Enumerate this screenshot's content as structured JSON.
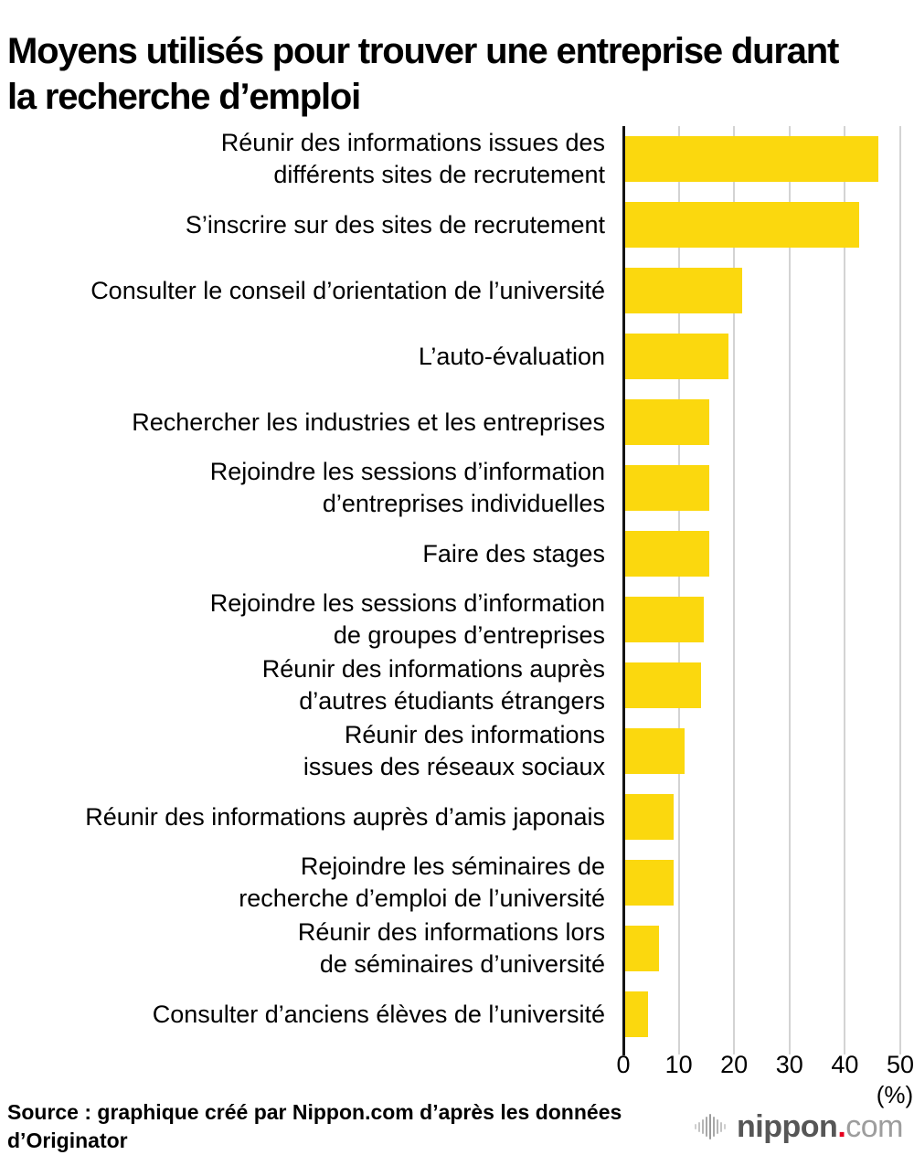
{
  "title": {
    "line1": "Moyens utilisés pour trouver une entreprise durant",
    "line2": "la recherche d’emploi"
  },
  "chart_data": {
    "type": "bar",
    "orientation": "horizontal",
    "title": "Moyens utilisés pour trouver une entreprise durant la recherche d’emploi",
    "categories": [
      "Réunir des informations issues des différents sites de recrutement",
      "S’inscrire sur des sites de recrutement",
      "Consulter le conseil d’orientation de l’université",
      "L’auto-évaluation",
      "Rechercher les industries et les entreprises",
      "Rejoindre les sessions d’information d’entreprises individuelles",
      "Faire des stages",
      "Rejoindre les sessions d’information de groupes d’entreprises",
      "Réunir des informations auprès d’autres étudiants étrangers",
      "Réunir des informations issues des réseaux sociaux",
      "Réunir des informations auprès d’amis japonais",
      "Rejoindre les séminaires de recherche d’emploi de l’université",
      "Réunir des informations lors de séminaires d’université",
      "Consulter d’anciens élèves de l’université"
    ],
    "categories_lines": [
      [
        "Réunir des informations issues des",
        "différents sites de recrutement"
      ],
      [
        "S’inscrire sur des sites de recrutement"
      ],
      [
        "Consulter le conseil d’orientation de l’université"
      ],
      [
        "L’auto-évaluation"
      ],
      [
        "Rechercher les industries et les entreprises"
      ],
      [
        "Rejoindre les sessions d’information",
        "d’entreprises individuelles"
      ],
      [
        "Faire des stages"
      ],
      [
        "Rejoindre les sessions d’information",
        "de groupes d’entreprises"
      ],
      [
        "Réunir des informations auprès",
        "d’autres étudiants étrangers"
      ],
      [
        "Réunir des informations",
        "issues des réseaux sociaux"
      ],
      [
        "Réunir des informations auprès d’amis japonais"
      ],
      [
        "Rejoindre les séminaires de",
        "recherche d’emploi de l’université"
      ],
      [
        "Réunir des informations lors",
        "de séminaires d’université"
      ],
      [
        "Consulter d’anciens élèves de l’université"
      ]
    ],
    "values": [
      46,
      42.5,
      21.5,
      19,
      15.5,
      15.5,
      15.5,
      14.5,
      14,
      11,
      9,
      9,
      6.5,
      4.5
    ],
    "xlabel": "",
    "ylabel": "",
    "xlim": [
      0,
      50
    ],
    "x_ticks": [
      0,
      10,
      20,
      30,
      40,
      50
    ],
    "x_tick_labels": [
      "0",
      "10",
      "20",
      "30",
      "40",
      "50"
    ],
    "x_unit_label": "(%)",
    "bar_color": "#fbd80e",
    "gridline_color": "#d3d3d3",
    "axis_color": "#141414",
    "grid": true,
    "legend": false
  },
  "footer": {
    "source_lines": [
      "Source : graphique créé par Nippon.com d’après les données",
      "d’Originator"
    ],
    "logo": {
      "icon": "soundwave-icon",
      "brand": "nippon",
      "dot": ".",
      "suffix": "com"
    }
  }
}
